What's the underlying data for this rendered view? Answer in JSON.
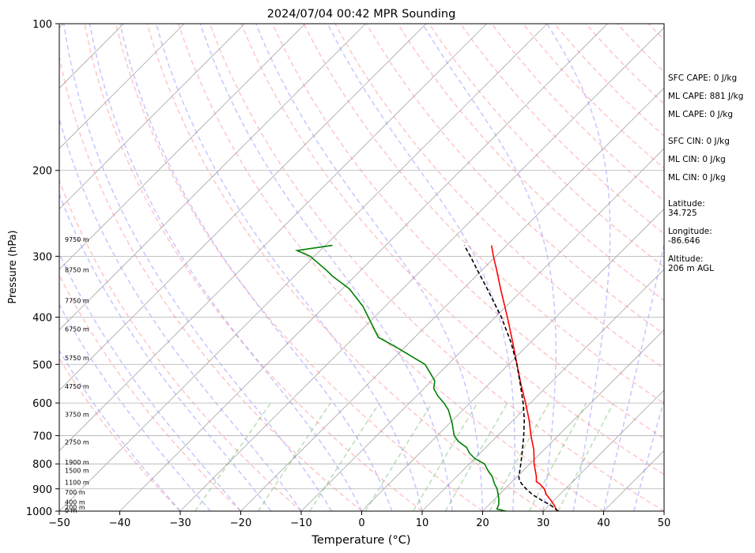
{
  "chart_data": {
    "type": "line",
    "title": "2024/07/04 00:42 MPR Sounding",
    "xlabel": "Temperature (°C)",
    "ylabel": "Pressure (hPa)",
    "xlim": [
      -50,
      50
    ],
    "ylim": [
      1000,
      100
    ],
    "y_scale": "log",
    "skew": true,
    "grid": true,
    "x_ticks": [
      "−50",
      "−40",
      "−30",
      "−20",
      "−10",
      "0",
      "10",
      "20",
      "30",
      "40",
      "50"
    ],
    "y_ticks": [
      "100",
      "200",
      "300",
      "400",
      "500",
      "600",
      "700",
      "800",
      "900",
      "1000"
    ],
    "series": [
      {
        "role": "temperature",
        "color": "#ff0000",
        "points": [
          [
            1000,
            32.3
          ],
          [
            975,
            31.0
          ],
          [
            950,
            29.5
          ],
          [
            925,
            27.8
          ],
          [
            900,
            26.5
          ],
          [
            880,
            25.0
          ],
          [
            870,
            24.0
          ],
          [
            850,
            23.2
          ],
          [
            800,
            20.7
          ],
          [
            750,
            18.4
          ],
          [
            700,
            15.5
          ],
          [
            650,
            12.6
          ],
          [
            600,
            9.2
          ],
          [
            550,
            5.4
          ],
          [
            500,
            1.4
          ],
          [
            450,
            -3.0
          ],
          [
            400,
            -8.0
          ],
          [
            350,
            -13.8
          ],
          [
            320,
            -17.6
          ],
          [
            300,
            -20.4
          ],
          [
            285,
            -22.5
          ]
        ]
      },
      {
        "role": "dewpoint",
        "color": "#008000",
        "points": [
          [
            1000,
            23.8
          ],
          [
            990,
            22.0
          ],
          [
            970,
            21.6
          ],
          [
            940,
            20.5
          ],
          [
            900,
            18.7
          ],
          [
            880,
            17.5
          ],
          [
            850,
            15.9
          ],
          [
            820,
            13.8
          ],
          [
            800,
            12.5
          ],
          [
            780,
            10.0
          ],
          [
            760,
            8.2
          ],
          [
            740,
            6.8
          ],
          [
            720,
            4.5
          ],
          [
            700,
            2.8
          ],
          [
            660,
            0.4
          ],
          [
            620,
            -2.4
          ],
          [
            600,
            -4.3
          ],
          [
            580,
            -6.5
          ],
          [
            560,
            -8.4
          ],
          [
            540,
            -9.5
          ],
          [
            520,
            -11.6
          ],
          [
            500,
            -13.8
          ],
          [
            460,
            -21.6
          ],
          [
            440,
            -26.0
          ],
          [
            410,
            -29.7
          ],
          [
            380,
            -33.7
          ],
          [
            350,
            -38.8
          ],
          [
            330,
            -43.6
          ],
          [
            320,
            -45.8
          ],
          [
            310,
            -48.2
          ],
          [
            300,
            -50.7
          ],
          [
            292,
            -53.8
          ],
          [
            285,
            -48.8
          ]
        ]
      },
      {
        "role": "parcel",
        "color": "#000000",
        "dashed": true,
        "points": [
          [
            1000,
            32.5
          ],
          [
            975,
            30.5
          ],
          [
            950,
            28.0
          ],
          [
            925,
            25.5
          ],
          [
            900,
            23.5
          ],
          [
            880,
            22.0
          ],
          [
            865,
            21.0
          ],
          [
            850,
            20.3
          ],
          [
            800,
            18.5
          ],
          [
            750,
            16.5
          ],
          [
            700,
            14.3
          ],
          [
            650,
            11.8
          ],
          [
            600,
            8.8
          ],
          [
            550,
            5.3
          ],
          [
            500,
            1.4
          ],
          [
            450,
            -3.3
          ],
          [
            400,
            -9.0
          ],
          [
            350,
            -16.0
          ],
          [
            320,
            -20.8
          ],
          [
            300,
            -24.2
          ],
          [
            285,
            -27.0
          ]
        ]
      }
    ],
    "height_labels": [
      {
        "p": 1000,
        "text": "0 m"
      },
      {
        "p": 985,
        "text": "200 m"
      },
      {
        "p": 962,
        "text": "400 m"
      },
      {
        "p": 917,
        "text": "700 m"
      },
      {
        "p": 876,
        "text": "1100 m"
      },
      {
        "p": 828,
        "text": "1500 m"
      },
      {
        "p": 797,
        "text": "1900 m"
      },
      {
        "p": 724,
        "text": "2750 m"
      },
      {
        "p": 635,
        "text": "3750 m"
      },
      {
        "p": 557,
        "text": "4750 m"
      },
      {
        "p": 487,
        "text": "5750 m"
      },
      {
        "p": 425,
        "text": "6750 m"
      },
      {
        "p": 371,
        "text": "7750 m"
      },
      {
        "p": 321,
        "text": "8750 m"
      },
      {
        "p": 278,
        "text": "9750 m"
      }
    ]
  },
  "indices": {
    "sfc_cape": "SFC CAPE: 0 J/kg",
    "ml_cape_1": "ML CAPE: 881 J/kg",
    "ml_cape_2": "ML CAPE: 0 J/kg",
    "sfc_cin": "SFC CIN: 0 J/kg",
    "ml_cin_1": "ML CIN: 0 J/kg",
    "ml_cin_2": "ML CIN: 0 J/kg",
    "latitude": "Latitude:\n34.725",
    "longitude": "Longitude:\n-86.646",
    "altitude": "Altitude:\n206 m AGL"
  }
}
